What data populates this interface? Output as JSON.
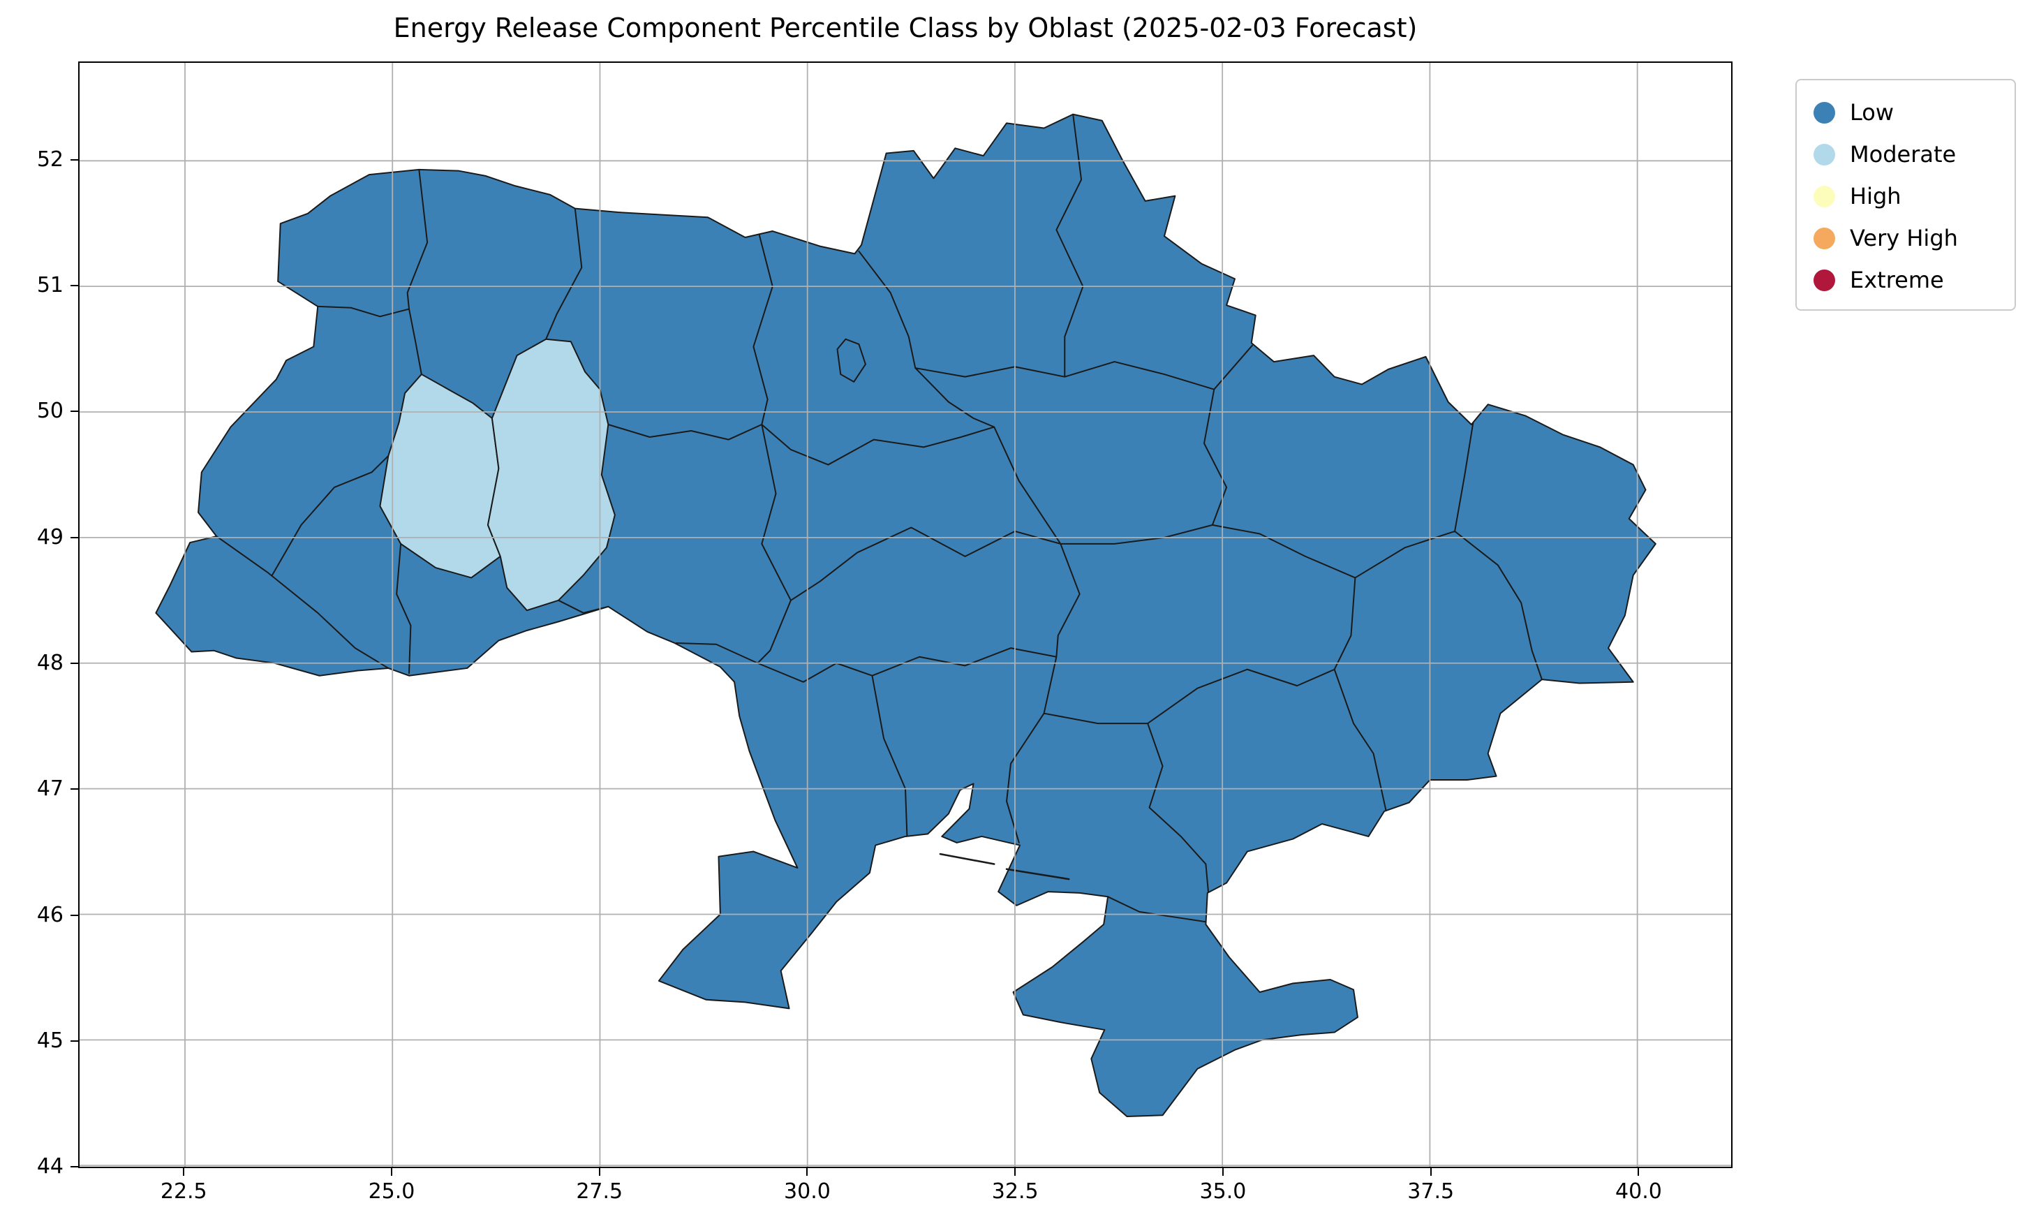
{
  "title": "Energy Release Component Percentile Class by Oblast (2025-02-03 Forecast)",
  "legend": {
    "items": [
      {
        "label": "Low",
        "color": "#3c81b5"
      },
      {
        "label": "Moderate",
        "color": "#b2d9ea"
      },
      {
        "label": "High",
        "color": "#fdfdbb"
      },
      {
        "label": "Very High",
        "color": "#f4a95e"
      },
      {
        "label": "Extreme",
        "color": "#b0173a"
      }
    ]
  },
  "axes": {
    "x_ticks": [
      "22.5",
      "25.0",
      "27.5",
      "30.0",
      "32.5",
      "35.0",
      "37.5",
      "40.0"
    ],
    "y_ticks": [
      "44",
      "45",
      "46",
      "47",
      "48",
      "49",
      "50",
      "51",
      "52"
    ],
    "xlim": [
      21.23,
      41.13
    ],
    "ylim": [
      43.99,
      52.78
    ]
  },
  "chart_data": {
    "type": "choropleth_map",
    "title": "Energy Release Component Percentile Class by Oblast (2025-02-03 Forecast)",
    "metric": "Energy Release Component Percentile Class",
    "forecast_date": "2025-02-03",
    "region_level": "Oblast (Ukraine)",
    "classes": [
      "Low",
      "Moderate",
      "High",
      "Very High",
      "Extreme"
    ],
    "class_colors": {
      "Low": "#3c81b5",
      "Moderate": "#b2d9ea",
      "High": "#fdfdbb",
      "Very High": "#f4a95e",
      "Extreme": "#b0173a"
    },
    "region_classes": {
      "Ternopil": "Moderate",
      "Khmelnytskyi": "Moderate",
      "all_other_oblasts": "Low"
    },
    "x_ticks": [
      22.5,
      25.0,
      27.5,
      30.0,
      32.5,
      35.0,
      37.5,
      40.0
    ],
    "y_ticks": [
      44,
      45,
      46,
      47,
      48,
      49,
      50,
      51,
      52
    ],
    "xlim": [
      21.23,
      41.13
    ],
    "ylim": [
      43.99,
      52.78
    ],
    "grid": true,
    "legend_position": "outside upper right"
  }
}
